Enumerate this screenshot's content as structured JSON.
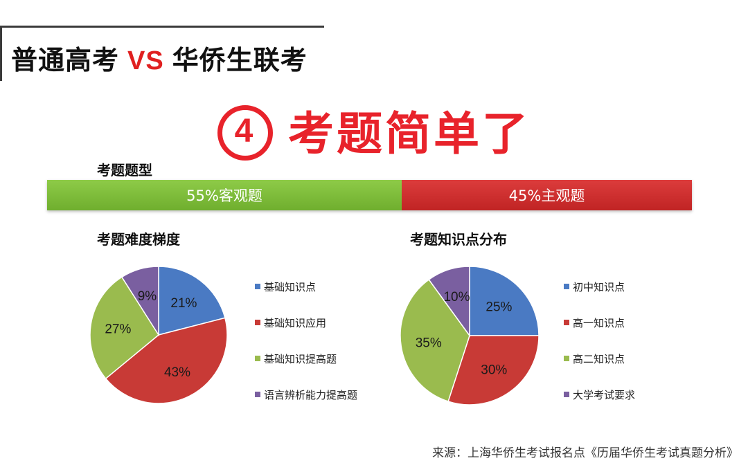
{
  "header": {
    "title_left": "普通高考",
    "title_vs": "VS",
    "title_right": "华侨生联考"
  },
  "headline": {
    "number": "4",
    "text": "考题简单了"
  },
  "colors": {
    "blue": "#4a7ac3",
    "red": "#c83a36",
    "green": "#9abb4e",
    "purple": "#7a5fa0",
    "accent": "#e8232b"
  },
  "question_type": {
    "label": "考题题型",
    "segments": [
      {
        "text": "55%客观题",
        "value": 55,
        "color": "#7ebc3c"
      },
      {
        "text": "45%主观题",
        "value": 45,
        "color": "#cf3030"
      }
    ]
  },
  "chart_data": [
    {
      "type": "pie",
      "title": "考题难度梯度",
      "categories": [
        "基础知识点",
        "基础知识应用",
        "基础知识提高题",
        "语言辨析能力提高题"
      ],
      "values": [
        21,
        43,
        27,
        9
      ],
      "labels": [
        "21%",
        "43%",
        "27%",
        "9%"
      ],
      "colors": [
        "#4a7ac3",
        "#c83a36",
        "#9abb4e",
        "#7a5fa0"
      ],
      "legend": "right"
    },
    {
      "type": "pie",
      "title": "考题知识点分布",
      "categories": [
        "初中知识点",
        "高一知识点",
        "高二知识点",
        "大学考试要求"
      ],
      "values": [
        25,
        30,
        35,
        10
      ],
      "labels": [
        "25%",
        "30%",
        "35%",
        "10%"
      ],
      "colors": [
        "#4a7ac3",
        "#c83a36",
        "#9abb4e",
        "#7a5fa0"
      ],
      "legend": "right"
    }
  ],
  "source": "来源：上海华侨生考试报名点《历届华侨生考试真题分析》"
}
